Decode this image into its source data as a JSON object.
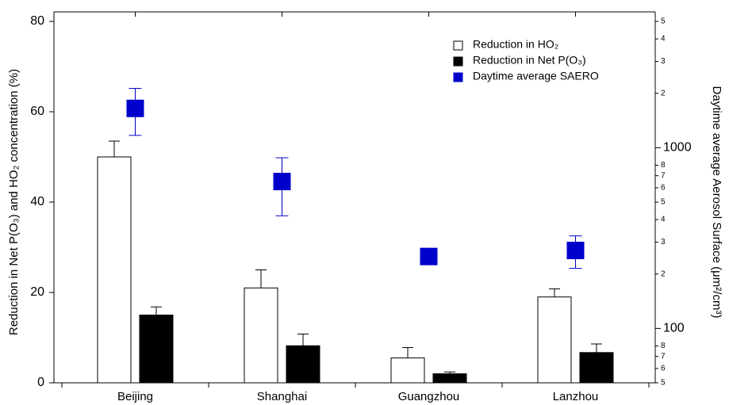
{
  "chart_data": {
    "type": "bar",
    "y_label": "Reduction in Net P(O₃) and HO₂ concentration (%)",
    "y2_label": "Daytime average Aerosol Surface (μm²/cm³)",
    "categories": [
      "Beijing",
      "Shanghai",
      "Guangzhou",
      "Lanzhou"
    ],
    "ylim": [
      0,
      80
    ],
    "yticks": [
      0,
      20,
      40,
      60,
      80
    ],
    "y2lim": [
      50,
      5000
    ],
    "y2scale": "log",
    "y2ticks": [
      {
        "value": 50,
        "label": "5"
      },
      {
        "value": 60,
        "label": "6"
      },
      {
        "value": 70,
        "label": "7"
      },
      {
        "value": 80,
        "label": "8"
      },
      100,
      {
        "value": 200,
        "label": "2"
      },
      {
        "value": 300,
        "label": "3"
      },
      {
        "value": 400,
        "label": "4"
      },
      {
        "value": 500,
        "label": "5"
      },
      {
        "value": 600,
        "label": "6"
      },
      {
        "value": 700,
        "label": "7"
      },
      {
        "value": 800,
        "label": "8"
      },
      1000,
      {
        "value": 2000,
        "label": "2"
      },
      {
        "value": 3000,
        "label": "3"
      },
      {
        "value": 4000,
        "label": "4"
      },
      {
        "value": 5000,
        "label": "5"
      }
    ],
    "legend": "upper right",
    "series": [
      {
        "name": "Reduction in HO₂",
        "color": "#ffffff",
        "values": [
          50,
          21,
          5.5,
          19
        ],
        "errors": [
          3.5,
          4,
          2.3,
          1.8
        ]
      },
      {
        "name": "Reduction in Net P(O₃)",
        "color": "#000000",
        "values": [
          15,
          8.2,
          2,
          6.7
        ],
        "errors": [
          1.8,
          2.6,
          0.4,
          1.9
        ]
      },
      {
        "name": "Daytime average SAERO",
        "color": "#0000cc",
        "axis": "y2",
        "marker": "square",
        "values": [
          1650,
          650,
          250,
          270
        ],
        "errors": [
          480,
          230,
          null,
          55
        ]
      }
    ]
  }
}
